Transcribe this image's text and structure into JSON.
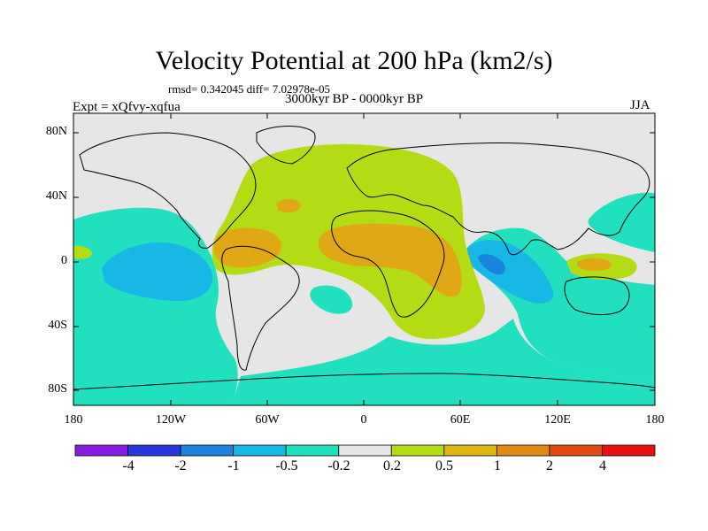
{
  "title": "Velocity Potential at 200 hPa (km2/s)",
  "stats": "rmsd= 0.342045 diff= 7.02978e-05",
  "left_label": "Expt = xQfvy-xqfua",
  "center_label": "3000kyr BP - 0000kyr BP",
  "right_label": "JJA",
  "y_ticks": [
    "80N",
    "40N",
    "0",
    "40S",
    "80S"
  ],
  "x_ticks": [
    "180",
    "120W",
    "60W",
    "0",
    "60E",
    "120E",
    "180"
  ],
  "colorbar": {
    "labels": [
      "-4",
      "-2",
      "-1",
      "-0.5",
      "-0.2",
      "0.2",
      "0.5",
      "1",
      "2",
      "4"
    ],
    "colors": [
      "#8a1ee0",
      "#2838d8",
      "#1a84dc",
      "#18b8e6",
      "#20e0c0",
      "#e6e6e6",
      "#b4dc14",
      "#e0b414",
      "#e08a14",
      "#e04a14",
      "#e81010"
    ]
  },
  "palette": {
    "ocean_bg": "#e6e6e6",
    "teal": "#20e0c0",
    "cyan": "#18b8e6",
    "blue": "#1a84dc",
    "lime": "#b4dc14",
    "orange": "#e0a814"
  }
}
